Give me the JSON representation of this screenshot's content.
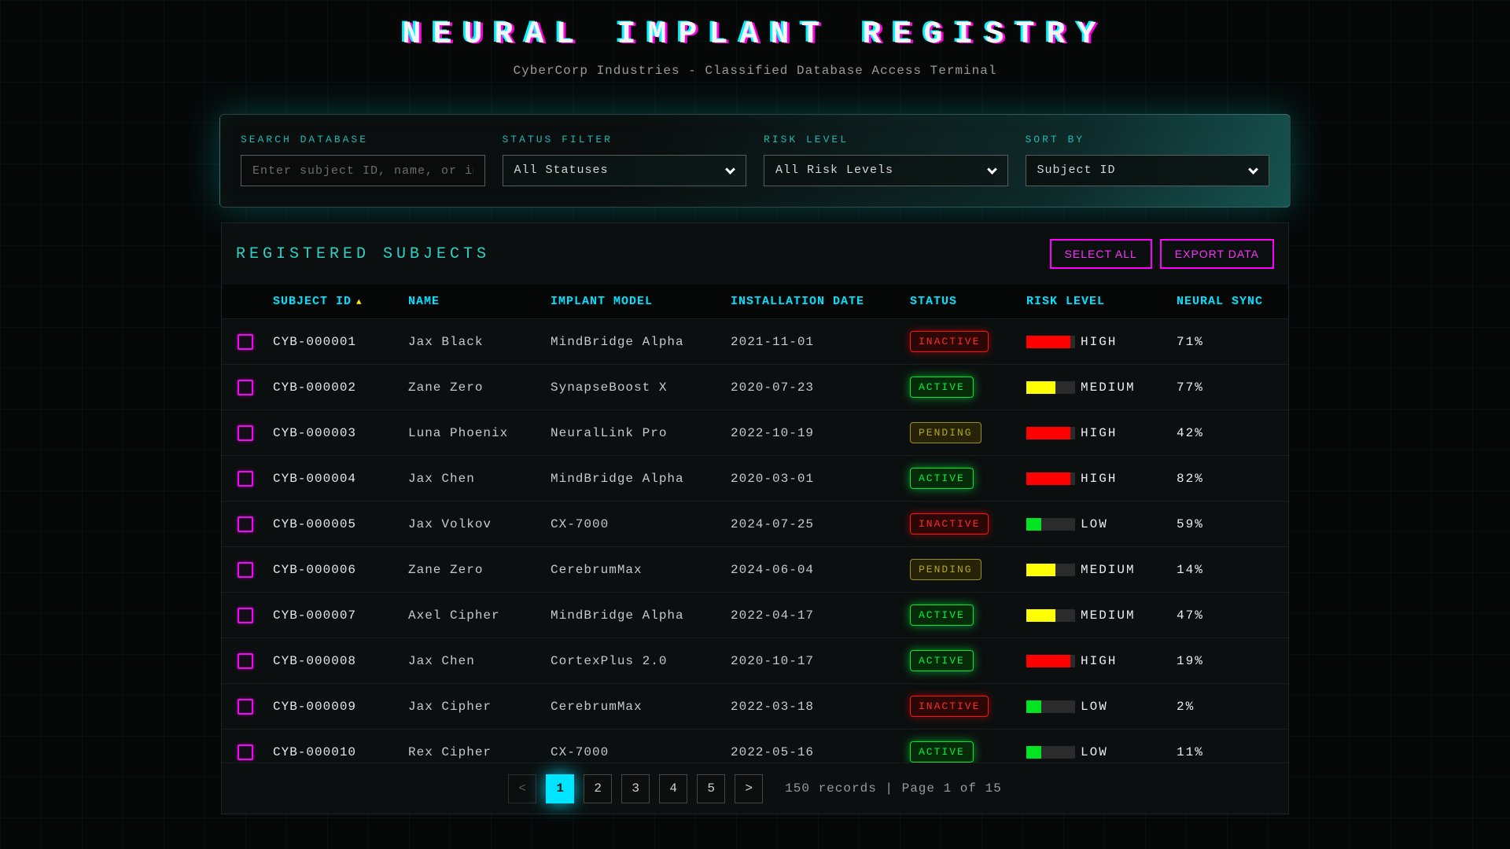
{
  "header": {
    "title": "NEURAL IMPLANT REGISTRY",
    "subtitle": "CyberCorp Industries - Classified Database Access Terminal"
  },
  "filters": {
    "search": {
      "label": "SEARCH DATABASE",
      "placeholder": "Enter subject ID, name, or implant model"
    },
    "status": {
      "label": "STATUS FILTER",
      "value": "All Statuses"
    },
    "risk": {
      "label": "RISK LEVEL",
      "value": "All Risk Levels"
    },
    "sort": {
      "label": "SORT BY",
      "value": "Subject ID"
    }
  },
  "table": {
    "title": "REGISTERED SUBJECTS",
    "select_all_label": "SELECT ALL",
    "export_label": "EXPORT DATA",
    "sort_indicator": "▲",
    "columns": {
      "id": "SUBJECT ID",
      "name": "NAME",
      "model": "IMPLANT MODEL",
      "date": "INSTALLATION DATE",
      "status": "STATUS",
      "risk": "RISK LEVEL",
      "sync": "NEURAL SYNC"
    },
    "risk_fill": {
      "HIGH": "90%",
      "MEDIUM": "60%",
      "LOW": "30%"
    },
    "rows": [
      {
        "id": "CYB-000001",
        "name": "Jax Black",
        "model": "MindBridge Alpha",
        "date": "2021-11-01",
        "status": "INACTIVE",
        "risk": "HIGH",
        "sync": "71%"
      },
      {
        "id": "CYB-000002",
        "name": "Zane Zero",
        "model": "SynapseBoost X",
        "date": "2020-07-23",
        "status": "ACTIVE",
        "risk": "MEDIUM",
        "sync": "77%"
      },
      {
        "id": "CYB-000003",
        "name": "Luna Phoenix",
        "model": "NeuralLink Pro",
        "date": "2022-10-19",
        "status": "PENDING",
        "risk": "HIGH",
        "sync": "42%"
      },
      {
        "id": "CYB-000004",
        "name": "Jax Chen",
        "model": "MindBridge Alpha",
        "date": "2020-03-01",
        "status": "ACTIVE",
        "risk": "HIGH",
        "sync": "82%"
      },
      {
        "id": "CYB-000005",
        "name": "Jax Volkov",
        "model": "CX-7000",
        "date": "2024-07-25",
        "status": "INACTIVE",
        "risk": "LOW",
        "sync": "59%"
      },
      {
        "id": "CYB-000006",
        "name": "Zane Zero",
        "model": "CerebrumMax",
        "date": "2024-06-04",
        "status": "PENDING",
        "risk": "MEDIUM",
        "sync": "14%"
      },
      {
        "id": "CYB-000007",
        "name": "Axel Cipher",
        "model": "MindBridge Alpha",
        "date": "2022-04-17",
        "status": "ACTIVE",
        "risk": "MEDIUM",
        "sync": "47%"
      },
      {
        "id": "CYB-000008",
        "name": "Jax Chen",
        "model": "CortexPlus 2.0",
        "date": "2020-10-17",
        "status": "ACTIVE",
        "risk": "HIGH",
        "sync": "19%"
      },
      {
        "id": "CYB-000009",
        "name": "Jax Cipher",
        "model": "CerebrumMax",
        "date": "2022-03-18",
        "status": "INACTIVE",
        "risk": "LOW",
        "sync": "2%"
      },
      {
        "id": "CYB-000010",
        "name": "Rex Cipher",
        "model": "CX-7000",
        "date": "2022-05-16",
        "status": "ACTIVE",
        "risk": "LOW",
        "sync": "11%"
      }
    ]
  },
  "pagination": {
    "prev_label": "<",
    "next_label": ">",
    "pages": [
      "1",
      "2",
      "3",
      "4",
      "5"
    ],
    "active_page": "1",
    "summary": "150 records | Page 1 of 15"
  },
  "colors": {
    "accent_cyan": "#00e5ff",
    "accent_teal": "#1fb8ad",
    "accent_magenta": "#ff00ff",
    "status_active": "#00f041",
    "status_inactive": "#ff2a2a",
    "status_pending": "#b3a522",
    "risk_high": "#ff0000",
    "risk_medium": "#ffff00",
    "risk_low": "#00e522"
  }
}
